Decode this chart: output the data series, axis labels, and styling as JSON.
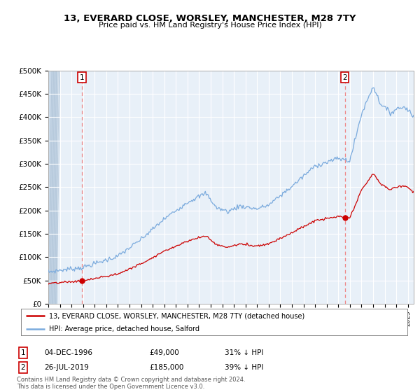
{
  "title": "13, EVERARD CLOSE, WORSLEY, MANCHESTER, M28 7TY",
  "subtitle": "Price paid vs. HM Land Registry's House Price Index (HPI)",
  "legend_line1": "13, EVERARD CLOSE, WORSLEY, MANCHESTER, M28 7TY (detached house)",
  "legend_line2": "HPI: Average price, detached house, Salford",
  "annotation1_label": "1",
  "annotation1_date": "04-DEC-1996",
  "annotation1_price": "£49,000",
  "annotation1_hpi": "31% ↓ HPI",
  "annotation2_label": "2",
  "annotation2_date": "26-JUL-2019",
  "annotation2_price": "£185,000",
  "annotation2_hpi": "39% ↓ HPI",
  "footnote": "Contains HM Land Registry data © Crown copyright and database right 2024.\nThis data is licensed under the Open Government Licence v3.0.",
  "hpi_color": "#7aaadd",
  "price_color": "#cc0000",
  "marker_color": "#cc0000",
  "vline_color": "#ee8888",
  "plot_bg": "#e8f0f8",
  "grid_color": "#ffffff",
  "annotation_box_color": "#cc0000",
  "hatch_color": "#c8d8e8",
  "ylim": [
    0,
    500000
  ],
  "yticks": [
    0,
    50000,
    100000,
    150000,
    200000,
    250000,
    300000,
    350000,
    400000,
    450000,
    500000
  ],
  "ytick_labels": [
    "£0",
    "£50K",
    "£100K",
    "£150K",
    "£200K",
    "£250K",
    "£300K",
    "£350K",
    "£400K",
    "£450K",
    "£500K"
  ],
  "xmin": 1994.0,
  "xmax": 2025.5,
  "sale1_x": 1996.92,
  "sale1_y": 49000,
  "sale2_x": 2019.56,
  "sale2_y": 185000
}
